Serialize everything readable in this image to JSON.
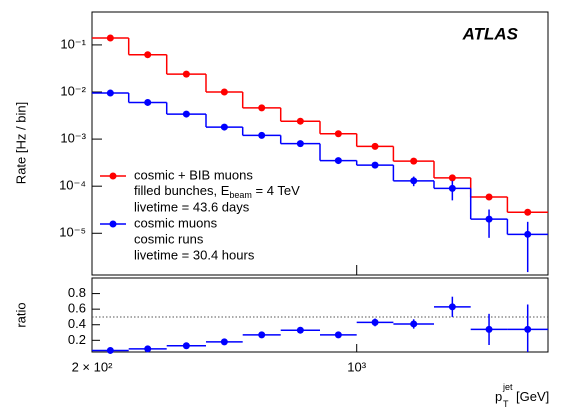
{
  "chart_data": {
    "type": "histogram",
    "label": "ATLAS",
    "ylabel": "Rate [Hz / bin]",
    "ratio_label": "ratio",
    "xlabel": {
      "symbol": "p",
      "sub": "T",
      "sup": "jet",
      "unit": "[GeV]"
    },
    "xlog": true,
    "ylog": true,
    "xlim": [
      200,
      3200
    ],
    "ylim": [
      1.3e-06,
      0.5
    ],
    "xticks": [
      {
        "value": 200,
        "label": "2 × 10²"
      },
      {
        "value": 1000,
        "label": "10³"
      }
    ],
    "yticks": [
      {
        "value": 1e-05,
        "label": "10⁻⁵"
      },
      {
        "value": 0.0001,
        "label": "10⁻⁴"
      },
      {
        "value": 0.001,
        "label": "10⁻³"
      },
      {
        "value": 0.01,
        "label": "10⁻²"
      },
      {
        "value": 0.1,
        "label": "10⁻¹"
      }
    ],
    "bins": [
      200,
      250,
      315,
      400,
      500,
      630,
      800,
      1000,
      1250,
      1600,
      2000,
      2500,
      3200
    ],
    "legend": "lower left",
    "series": [
      {
        "name": "cosmic + BIB muons",
        "color": "#ff0000",
        "notes": [
          {
            "text": "filled bunches, E",
            "sub": "beam",
            "after": " = 4 TeV"
          },
          "livetime = 43.6 days"
        ],
        "values": [
          0.14,
          0.062,
          0.024,
          0.01,
          0.0046,
          0.0024,
          0.0013,
          0.0007,
          0.00034,
          0.00015,
          5.9e-05,
          2.8e-05
        ]
      },
      {
        "name": "cosmic muons",
        "color": "#0000ff",
        "notes": [
          "cosmic runs",
          "livetime = 30.4 hours"
        ],
        "values": [
          0.0095,
          0.006,
          0.0034,
          0.0018,
          0.0012,
          0.0008,
          0.00035,
          0.00028,
          0.00013,
          9e-05,
          2e-05,
          9.5e-06
        ],
        "errors": [
          0.0003,
          0.0002,
          0.0001,
          6e-05,
          4e-05,
          3e-05,
          2e-05,
          2e-05,
          3e-05,
          4e-05,
          1.2e-05,
          8e-06
        ]
      }
    ],
    "ratio": {
      "color": "#0000ff",
      "ylim": [
        0.05,
        1.0
      ],
      "yticks": [
        0.2,
        0.4,
        0.6,
        0.8
      ],
      "reference": 0.5,
      "values": [
        0.07,
        0.09,
        0.13,
        0.18,
        0.27,
        0.33,
        0.27,
        0.43,
        0.41,
        0.63,
        0.34,
        0.34
      ],
      "errors": [
        0.005,
        0.008,
        0.01,
        0.01,
        0.02,
        0.02,
        0.02,
        0.05,
        0.06,
        0.13,
        0.2,
        0.32
      ]
    }
  }
}
